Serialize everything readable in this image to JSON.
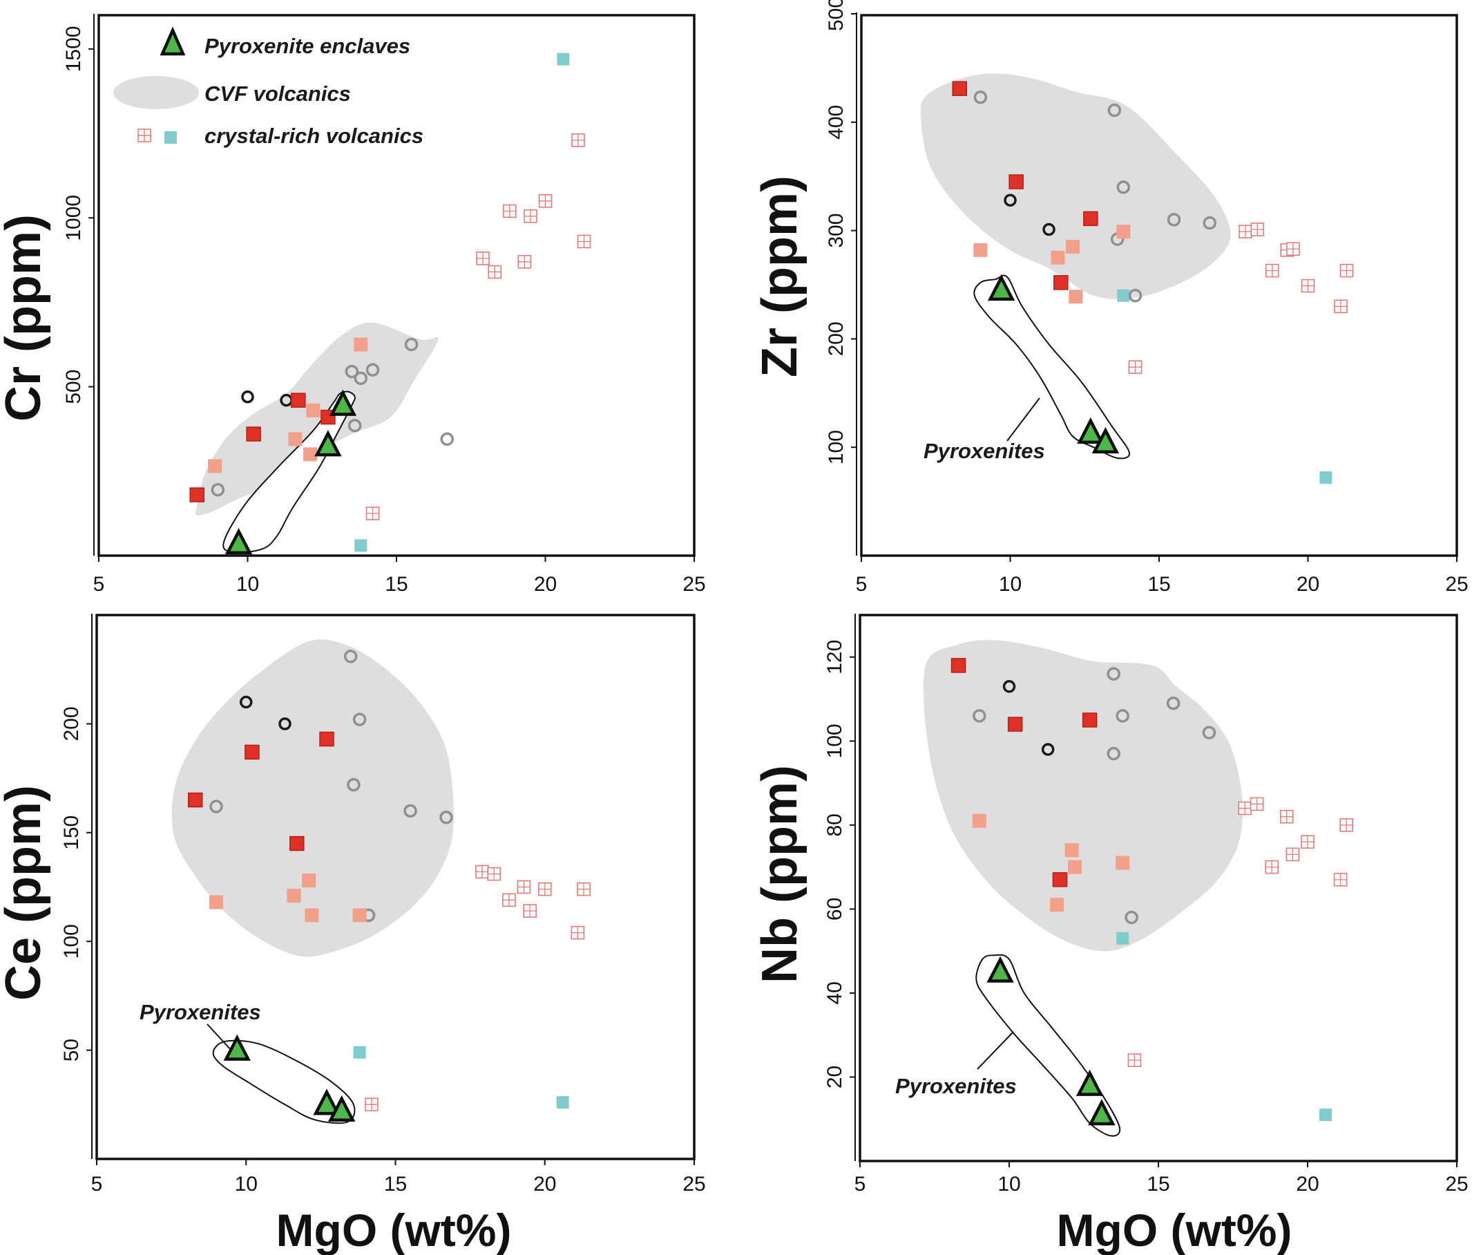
{
  "colors": {
    "pyroxenite_fill": "#4cb848",
    "pyroxenite_stroke": "#0d0d0d",
    "cvf_area": "#dedede",
    "cvf_open_black": "#1a1a1a",
    "cvf_open_grey": "#8f8f8f",
    "cvf_red": "#e03127",
    "cvf_salmon": "#f2a08a",
    "crystal_hatched": "#e57a78",
    "crystal_cyan": "#7fcccc"
  },
  "legend": {
    "pyroxenite": "Pyroxenite enclaves",
    "cvf": "CVF volcanics",
    "crystal": "crystal-rich volcanics"
  },
  "chart_data": [
    {
      "id": "cr",
      "type": "scatter",
      "ylabel": "Cr (ppm)",
      "xlabel": "",
      "xlim": [
        5,
        25
      ],
      "ylim": [
        0,
        1600
      ],
      "xticks": [
        5,
        10,
        15,
        20,
        25
      ],
      "yticks": [
        500,
        1000,
        1500
      ],
      "cvf_area": [
        [
          8.3,
          150
        ],
        [
          8.6,
          250
        ],
        [
          9.3,
          350
        ],
        [
          10.2,
          420
        ],
        [
          11.3,
          480
        ],
        [
          12.2,
          570
        ],
        [
          13.2,
          655
        ],
        [
          14.2,
          690
        ],
        [
          15.8,
          640
        ],
        [
          16.4,
          640
        ],
        [
          15.6,
          520
        ],
        [
          14.8,
          410
        ],
        [
          13.5,
          360
        ],
        [
          12.2,
          300
        ],
        [
          11.0,
          220
        ],
        [
          9.6,
          165
        ],
        [
          8.8,
          130
        ],
        [
          8.3,
          120
        ]
      ],
      "pyroxenite_field": [
        [
          13.4,
          485
        ],
        [
          13.6,
          470
        ],
        [
          13.5,
          445
        ],
        [
          13.0,
          360
        ],
        [
          12.4,
          260
        ],
        [
          11.5,
          140
        ],
        [
          11.0,
          60
        ],
        [
          10.5,
          20
        ],
        [
          9.5,
          10
        ],
        [
          9.2,
          40
        ],
        [
          9.9,
          150
        ],
        [
          11.0,
          260
        ],
        [
          12.2,
          370
        ],
        [
          12.9,
          455
        ],
        [
          13.1,
          480
        ]
      ],
      "series": [
        {
          "name": "Pyroxenite enclaves",
          "marker": "triangle",
          "x": [
            9.7,
            12.7,
            13.2
          ],
          "y": [
            35,
            325,
            445
          ]
        },
        {
          "name": "CVF open black",
          "marker": "circle-black",
          "x": [
            10.0,
            11.3
          ],
          "y": [
            470,
            460
          ]
        },
        {
          "name": "CVF open grey",
          "marker": "circle-grey",
          "x": [
            9.0,
            13.5,
            13.8,
            14.2,
            13.6,
            15.5,
            16.7
          ],
          "y": [
            195,
            545,
            525,
            550,
            385,
            625,
            345
          ]
        },
        {
          "name": "CVF red",
          "marker": "square-red",
          "x": [
            8.3,
            10.2,
            11.7,
            12.7
          ],
          "y": [
            180,
            360,
            460,
            410
          ]
        },
        {
          "name": "CVF salmon",
          "marker": "square-salmon",
          "x": [
            8.9,
            11.6,
            12.1,
            12.2,
            13.8
          ],
          "y": [
            265,
            345,
            300,
            430,
            625
          ]
        },
        {
          "name": "crystal-rich hatched",
          "marker": "square-hatched",
          "x": [
            17.9,
            18.3,
            18.8,
            19.3,
            19.5,
            20.0,
            21.1,
            21.3,
            14.2
          ],
          "y": [
            880,
            840,
            1020,
            870,
            1005,
            1050,
            1230,
            930,
            125
          ]
        },
        {
          "name": "crystal-rich cyan",
          "marker": "square-cyan",
          "x": [
            13.8,
            20.6
          ],
          "y": [
            30,
            1470
          ]
        }
      ]
    },
    {
      "id": "zr",
      "type": "scatter",
      "ylabel": "Zr (ppm)",
      "xlabel": "",
      "xlim": [
        5,
        25
      ],
      "ylim": [
        0,
        500
      ],
      "xticks": [
        5,
        10,
        15,
        20,
        25
      ],
      "yticks": [
        100,
        200,
        300,
        400,
        500
      ],
      "annotation": "Pyroxenites",
      "cvf_area": [
        [
          7.2,
          425
        ],
        [
          8.3,
          440
        ],
        [
          9.5,
          445
        ],
        [
          10.8,
          440
        ],
        [
          12.2,
          428
        ],
        [
          13.9,
          415
        ],
        [
          15.6,
          370
        ],
        [
          16.9,
          330
        ],
        [
          17.4,
          295
        ],
        [
          16.8,
          270
        ],
        [
          15.6,
          250
        ],
        [
          14.2,
          238
        ],
        [
          12.8,
          240
        ],
        [
          11.3,
          265
        ],
        [
          9.8,
          285
        ],
        [
          8.3,
          320
        ],
        [
          7.3,
          360
        ],
        [
          7.0,
          405
        ]
      ],
      "pyroxenite_field": [
        [
          9.5,
          255
        ],
        [
          9.9,
          257
        ],
        [
          10.4,
          230
        ],
        [
          11.3,
          195
        ],
        [
          12.4,
          160
        ],
        [
          13.4,
          120
        ],
        [
          14.0,
          95
        ],
        [
          13.6,
          90
        ],
        [
          12.8,
          100
        ],
        [
          12.1,
          110
        ],
        [
          11.7,
          130
        ],
        [
          11.0,
          165
        ],
        [
          10.2,
          195
        ],
        [
          9.3,
          220
        ],
        [
          8.8,
          240
        ],
        [
          9.0,
          252
        ]
      ],
      "series": [
        {
          "name": "Pyroxenite enclaves",
          "marker": "triangle",
          "x": [
            9.7,
            12.7,
            13.2
          ],
          "y": [
            245,
            113,
            104
          ]
        },
        {
          "name": "CVF open black",
          "marker": "circle-black",
          "x": [
            10.0,
            11.3
          ],
          "y": [
            328,
            301
          ]
        },
        {
          "name": "CVF open grey",
          "marker": "circle-grey",
          "x": [
            9.0,
            13.5,
            13.8,
            13.6,
            14.2,
            15.5,
            16.7
          ],
          "y": [
            423,
            411,
            340,
            292,
            240,
            310,
            307
          ]
        },
        {
          "name": "CVF red",
          "marker": "square-red",
          "x": [
            8.3,
            10.2,
            12.7,
            11.7
          ],
          "y": [
            431,
            345,
            311,
            252
          ]
        },
        {
          "name": "CVF salmon",
          "marker": "square-salmon",
          "x": [
            9.0,
            13.8,
            12.1,
            11.6,
            12.2
          ],
          "y": [
            282,
            299,
            285,
            275,
            239
          ]
        },
        {
          "name": "crystal-rich hatched",
          "marker": "square-hatched",
          "x": [
            17.9,
            18.3,
            18.8,
            19.3,
            19.5,
            20.0,
            21.1,
            21.3,
            14.2
          ],
          "y": [
            299,
            301,
            263,
            282,
            283,
            249,
            230,
            263,
            174
          ]
        },
        {
          "name": "crystal-rich cyan",
          "marker": "square-cyan",
          "x": [
            13.8,
            20.6
          ],
          "y": [
            240,
            72
          ]
        }
      ]
    },
    {
      "id": "ce",
      "type": "scatter",
      "ylabel": "Ce (ppm)",
      "xlabel": "MgO (wt%)",
      "xlim": [
        5,
        25
      ],
      "ylim": [
        0,
        250
      ],
      "xticks": [
        5,
        10,
        15,
        20,
        25
      ],
      "yticks": [
        50,
        100,
        150,
        200
      ],
      "annotation": "Pyroxenites",
      "cvf_area": [
        [
          12.1,
          238
        ],
        [
          13.4,
          236
        ],
        [
          14.7,
          225
        ],
        [
          15.8,
          210
        ],
        [
          16.6,
          192
        ],
        [
          16.9,
          172
        ],
        [
          16.9,
          148
        ],
        [
          16.4,
          130
        ],
        [
          15.5,
          115
        ],
        [
          14.3,
          103
        ],
        [
          13.1,
          96
        ],
        [
          11.9,
          93
        ],
        [
          10.6,
          100
        ],
        [
          9.4,
          112
        ],
        [
          8.4,
          128
        ],
        [
          7.6,
          148
        ],
        [
          7.6,
          170
        ],
        [
          8.2,
          190
        ],
        [
          9.2,
          208
        ],
        [
          10.5,
          224
        ]
      ],
      "pyroxenite_field": [
        [
          9.3,
          54
        ],
        [
          10.4,
          53
        ],
        [
          11.7,
          45
        ],
        [
          12.9,
          35
        ],
        [
          13.6,
          25
        ],
        [
          13.4,
          17
        ],
        [
          12.3,
          18
        ],
        [
          11.3,
          25
        ],
        [
          10.1,
          35
        ],
        [
          9.2,
          43
        ],
        [
          8.9,
          49
        ]
      ],
      "series": [
        {
          "name": "Pyroxenite enclaves",
          "marker": "triangle",
          "x": [
            9.7,
            12.7,
            13.2
          ],
          "y": [
            50,
            25,
            22
          ]
        },
        {
          "name": "CVF open black",
          "marker": "circle-black",
          "x": [
            10.0,
            11.3
          ],
          "y": [
            210,
            200
          ]
        },
        {
          "name": "CVF open grey",
          "marker": "circle-grey",
          "x": [
            13.5,
            13.8,
            13.6,
            9.0,
            15.5,
            16.7,
            14.1
          ],
          "y": [
            231,
            202,
            172,
            162,
            160,
            157,
            112
          ]
        },
        {
          "name": "CVF red",
          "marker": "square-red",
          "x": [
            10.2,
            12.7,
            8.3,
            11.7
          ],
          "y": [
            187,
            193,
            165,
            145
          ]
        },
        {
          "name": "CVF salmon",
          "marker": "square-salmon",
          "x": [
            9.0,
            11.6,
            12.1,
            12.2,
            13.8
          ],
          "y": [
            118,
            121,
            128,
            112,
            112
          ]
        },
        {
          "name": "crystal-rich hatched",
          "marker": "square-hatched",
          "x": [
            17.9,
            18.3,
            18.8,
            19.3,
            19.5,
            20.0,
            21.1,
            21.3,
            14.2
          ],
          "y": [
            132,
            131,
            119,
            125,
            114,
            124,
            104,
            124,
            25
          ]
        },
        {
          "name": "crystal-rich cyan",
          "marker": "square-cyan",
          "x": [
            13.8,
            20.6
          ],
          "y": [
            49,
            26
          ]
        }
      ]
    },
    {
      "id": "nb",
      "type": "scatter",
      "ylabel": "Nb (ppm)",
      "xlabel": "MgO (wt%)",
      "xlim": [
        5,
        25
      ],
      "ylim": [
        0,
        130
      ],
      "xticks": [
        5,
        10,
        15,
        20,
        25
      ],
      "yticks": [
        20,
        40,
        60,
        80,
        100,
        120
      ],
      "annotation": "Pyroxenites",
      "cvf_area": [
        [
          7.2,
          118
        ],
        [
          8.3,
          123
        ],
        [
          9.6,
          124
        ],
        [
          11.2,
          122
        ],
        [
          12.8,
          119
        ],
        [
          14.8,
          118
        ],
        [
          15.6,
          113
        ],
        [
          16.6,
          107
        ],
        [
          17.4,
          99
        ],
        [
          17.8,
          87
        ],
        [
          17.7,
          76
        ],
        [
          17.0,
          67
        ],
        [
          15.9,
          60
        ],
        [
          14.5,
          53
        ],
        [
          13.3,
          50
        ],
        [
          12.0,
          52
        ],
        [
          10.6,
          58
        ],
        [
          9.2,
          67
        ],
        [
          8.0,
          80
        ],
        [
          7.3,
          98
        ]
      ],
      "pyroxenite_field": [
        [
          9.5,
          49
        ],
        [
          10.0,
          48
        ],
        [
          10.5,
          40
        ],
        [
          11.4,
          32
        ],
        [
          12.3,
          24
        ],
        [
          13.1,
          16
        ],
        [
          13.7,
          8
        ],
        [
          13.4,
          6
        ],
        [
          12.7,
          9
        ],
        [
          12.1,
          15
        ],
        [
          11.1,
          23
        ],
        [
          10.2,
          30
        ],
        [
          9.3,
          38
        ],
        [
          8.9,
          43
        ],
        [
          9.1,
          48
        ]
      ],
      "series": [
        {
          "name": "Pyroxenite enclaves",
          "marker": "triangle",
          "x": [
            9.7,
            12.7,
            13.1
          ],
          "y": [
            45,
            18,
            11
          ]
        },
        {
          "name": "CVF open black",
          "marker": "circle-black",
          "x": [
            10.0,
            11.3
          ],
          "y": [
            113,
            98
          ]
        },
        {
          "name": "CVF open grey",
          "marker": "circle-grey",
          "x": [
            13.5,
            15.5,
            9.0,
            13.8,
            16.7,
            13.5,
            14.1
          ],
          "y": [
            116,
            109,
            106,
            106,
            102,
            97,
            58
          ]
        },
        {
          "name": "CVF red",
          "marker": "square-red",
          "x": [
            8.3,
            10.2,
            12.7,
            11.7
          ],
          "y": [
            118,
            104,
            105,
            67
          ]
        },
        {
          "name": "CVF salmon",
          "marker": "square-salmon",
          "x": [
            9.0,
            12.1,
            12.2,
            13.8,
            11.6
          ],
          "y": [
            81,
            74,
            70,
            71,
            61
          ]
        },
        {
          "name": "crystal-rich hatched",
          "marker": "square-hatched",
          "x": [
            17.9,
            18.3,
            18.8,
            19.3,
            19.5,
            20.0,
            21.1,
            21.3,
            14.2
          ],
          "y": [
            84,
            85,
            70,
            82,
            73,
            76,
            67,
            80,
            24
          ]
        },
        {
          "name": "crystal-rich cyan",
          "marker": "square-cyan",
          "x": [
            13.8,
            20.6
          ],
          "y": [
            53,
            11
          ]
        }
      ]
    }
  ]
}
